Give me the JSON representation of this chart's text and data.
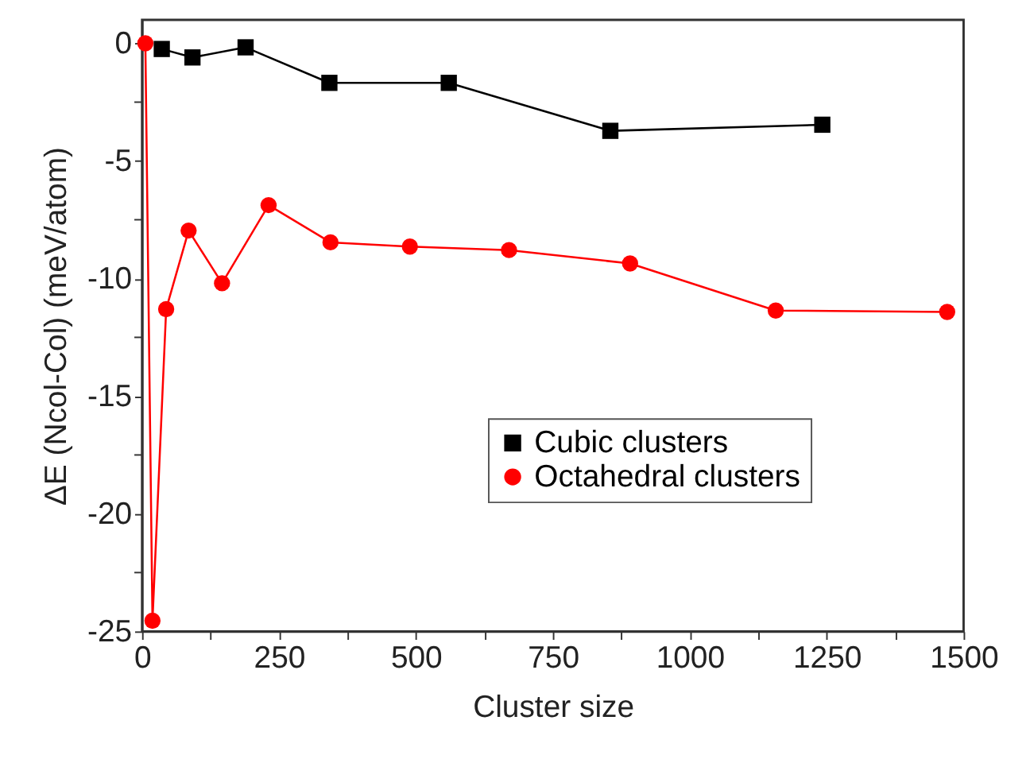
{
  "chart_data": {
    "type": "line",
    "xlabel": "Cluster size",
    "ylabel": "ΔE (Ncol-Col) (meV/atom)",
    "xlim": [
      0,
      1500
    ],
    "ylim": [
      -25,
      1
    ],
    "xticks": [
      0,
      {
        "value": 125,
        "label": null
      },
      250,
      {
        "value": 375,
        "label": null
      },
      500,
      {
        "value": 625,
        "label": null
      },
      750,
      {
        "value": 875,
        "label": null
      },
      1000,
      {
        "value": 1125,
        "label": null
      },
      1250,
      {
        "value": 1375,
        "label": null
      },
      1500
    ],
    "yticks": [
      0,
      {
        "value": -2.5,
        "label": null
      },
      -5,
      {
        "value": -7.5,
        "label": null
      },
      -10,
      {
        "value": -12.5,
        "label": null
      },
      -15,
      {
        "value": -17.5,
        "label": null
      },
      -20,
      {
        "value": -22.5,
        "label": null
      },
      -25
    ],
    "grid": false,
    "legend": "right",
    "series": [
      {
        "name": "Cubic clusters",
        "color": "#000000",
        "marker": "square",
        "x": [
          36,
          92,
          189,
          342,
          560,
          855,
          1242
        ],
        "values": [
          -0.24,
          -0.6,
          -0.17,
          -1.68,
          -1.68,
          -3.72,
          -3.46
        ]
      },
      {
        "name": "Octahedral clusters",
        "color": "#ff0000",
        "marker": "circle",
        "x": [
          6,
          19,
          44,
          85,
          146,
          231,
          344,
          489,
          670,
          891,
          1157,
          1470
        ],
        "values": [
          0,
          -24.55,
          -11.3,
          -7.96,
          -10.2,
          -6.88,
          -8.46,
          -8.64,
          -8.79,
          -9.36,
          -11.36,
          -11.42
        ]
      }
    ]
  }
}
